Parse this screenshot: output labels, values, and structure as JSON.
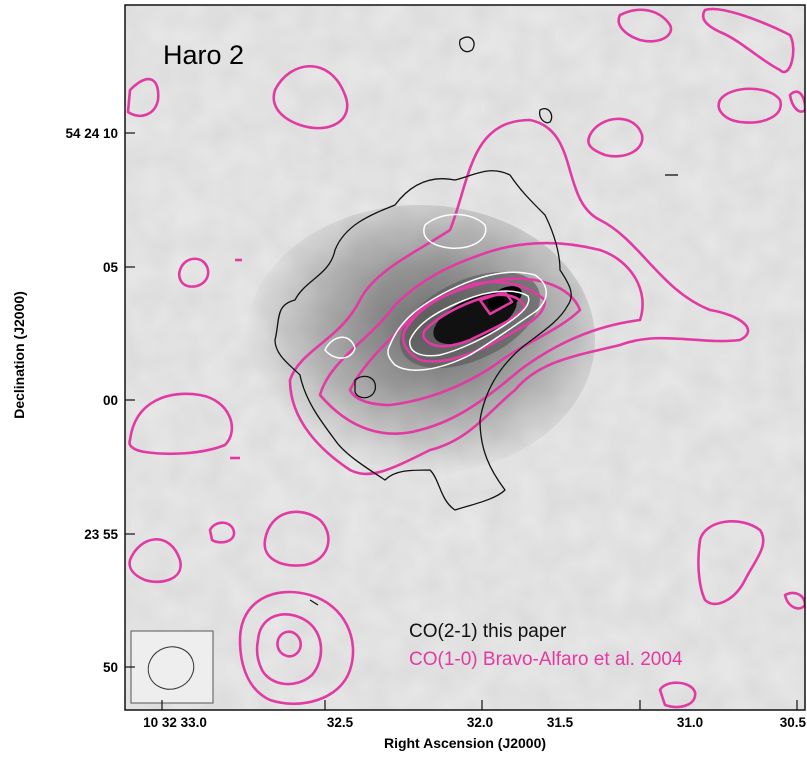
{
  "figure": {
    "title": "Haro 2",
    "legend": [
      {
        "label": "CO(2-1) this paper",
        "color": "#111111"
      },
      {
        "label": "CO(1-0) Bravo-Alfaro et al. 2004",
        "color": "#e23aa3"
      }
    ],
    "x_axis": {
      "title": "Right Ascension (J2000)",
      "ticks": [
        "10 32 33.0",
        "32.5",
        "32.0",
        "31.5",
        "31.0",
        "30.5"
      ]
    },
    "y_axis": {
      "title": "Declination (J2000)",
      "ticks": [
        "54 24 10",
        "05",
        "00",
        "23 55",
        "50"
      ]
    },
    "colors": {
      "co21_contour": "#111111",
      "co10_contour": "#e23aa3",
      "inner_contour": "#ffffff"
    }
  }
}
